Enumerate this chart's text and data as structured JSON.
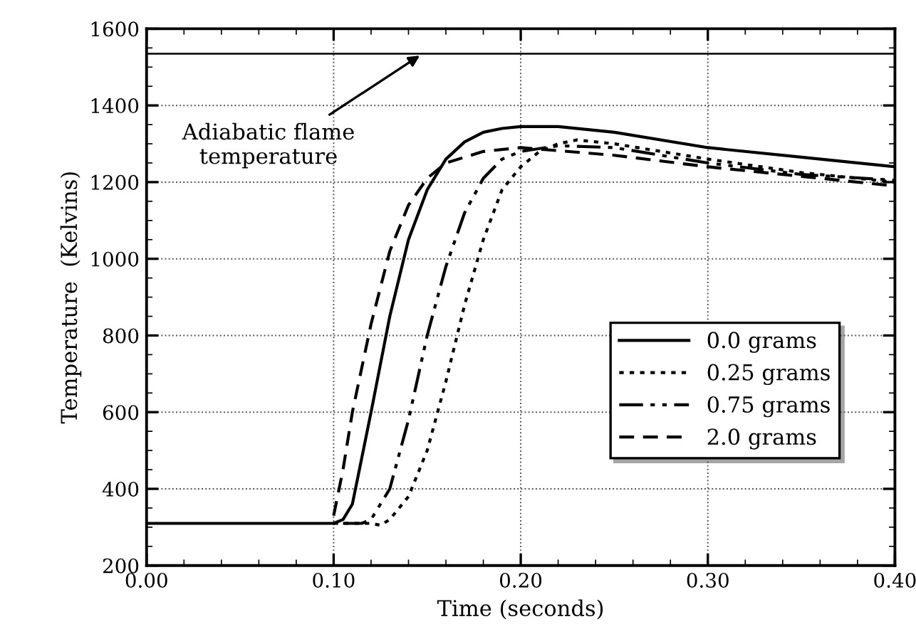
{
  "chart_data": {
    "type": "line",
    "xlabel": "Time (seconds)",
    "ylabel": "Temperature  (Kelvins)",
    "xlim": [
      0,
      0.4
    ],
    "ylim": [
      200,
      1600
    ],
    "xticks": [
      {
        "value": 0,
        "label": "0.00"
      },
      {
        "value": 0.1,
        "label": "0.10"
      },
      {
        "value": 0.2,
        "label": "0.20"
      },
      {
        "value": 0.3,
        "label": "0.30"
      },
      {
        "value": 0.4,
        "label": "0.40"
      }
    ],
    "yticks": [
      200,
      400,
      600,
      800,
      1000,
      1200,
      1400,
      1600
    ],
    "grid": true,
    "legend": "bottom right",
    "series": [
      {
        "name": "0.0 grams",
        "color": "#000000",
        "line_style": "solid",
        "x": [
          0,
          0.05,
          0.1,
          0.105,
          0.11,
          0.12,
          0.13,
          0.14,
          0.15,
          0.16,
          0.17,
          0.18,
          0.19,
          0.2,
          0.22,
          0.25,
          0.3,
          0.35,
          0.4
        ],
        "values": [
          310,
          310,
          310,
          320,
          360,
          600,
          850,
          1050,
          1180,
          1260,
          1305,
          1330,
          1340,
          1345,
          1345,
          1330,
          1290,
          1265,
          1240
        ]
      },
      {
        "name": "0.25 grams",
        "color": "#000000",
        "line_style": "dotted",
        "x": [
          0.1,
          0.12,
          0.125,
          0.13,
          0.14,
          0.15,
          0.16,
          0.17,
          0.18,
          0.19,
          0.2,
          0.21,
          0.22,
          0.23,
          0.25,
          0.3,
          0.35,
          0.4
        ],
        "values": [
          310,
          310,
          305,
          320,
          380,
          500,
          680,
          880,
          1050,
          1180,
          1240,
          1280,
          1300,
          1310,
          1300,
          1260,
          1225,
          1200
        ]
      },
      {
        "name": "0.75 grams",
        "color": "#000000",
        "line_style": "dashdot",
        "x": [
          0.105,
          0.115,
          0.12,
          0.13,
          0.14,
          0.15,
          0.16,
          0.17,
          0.18,
          0.19,
          0.2,
          0.22,
          0.25,
          0.3,
          0.35,
          0.4
        ],
        "values": [
          310,
          310,
          320,
          400,
          580,
          800,
          980,
          1120,
          1210,
          1260,
          1280,
          1295,
          1290,
          1250,
          1220,
          1205
        ]
      },
      {
        "name": "2.0 grams",
        "color": "#000000",
        "line_style": "dashed",
        "x": [
          0.1,
          0.105,
          0.11,
          0.12,
          0.13,
          0.14,
          0.15,
          0.16,
          0.18,
          0.2,
          0.25,
          0.3,
          0.35,
          0.4
        ],
        "values": [
          330,
          450,
          600,
          830,
          1020,
          1140,
          1210,
          1250,
          1280,
          1290,
          1270,
          1240,
          1215,
          1190
        ]
      }
    ],
    "ref_lines": [
      {
        "axis": "y",
        "value": 1535,
        "color": "#000000"
      }
    ],
    "annotations": [
      {
        "text": "Adiabatic flame\ntemperature",
        "x": 0.146,
        "y": 1530
      }
    ]
  }
}
